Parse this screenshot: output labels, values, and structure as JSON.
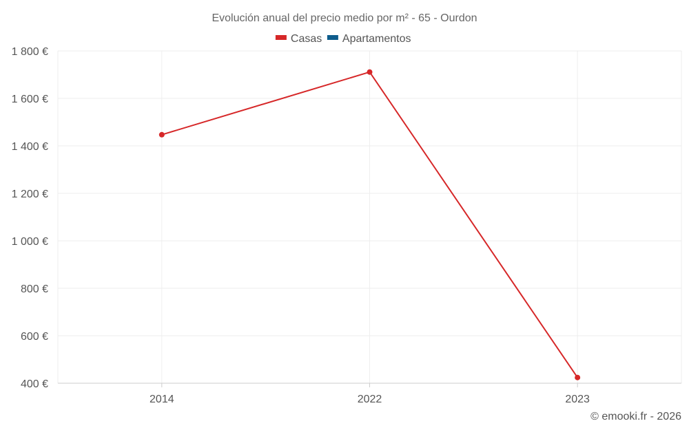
{
  "chart_data": {
    "type": "line",
    "title": "Evolución anual del precio medio por m² - 65 - Ourdon",
    "categories": [
      "2014",
      "2022",
      "2023"
    ],
    "series": [
      {
        "name": "Casas",
        "color": "#d62728",
        "values": [
          1447,
          1711,
          424
        ]
      },
      {
        "name": "Apartamentos",
        "color": "#0e5d8c",
        "values": [
          null,
          null,
          null
        ]
      }
    ],
    "ylim": [
      400,
      1800
    ],
    "yticks": [
      400,
      600,
      800,
      1000,
      1200,
      1400,
      1600,
      1800
    ],
    "ytick_labels": [
      "400 €",
      "600 €",
      "800 €",
      "1 000 €",
      "1 200 €",
      "1 400 €",
      "1 600 €",
      "1 800 €"
    ],
    "xlabel": "",
    "ylabel": "",
    "grid": true,
    "legend_position": "top-center"
  },
  "credit": "© emooki.fr - 2026"
}
